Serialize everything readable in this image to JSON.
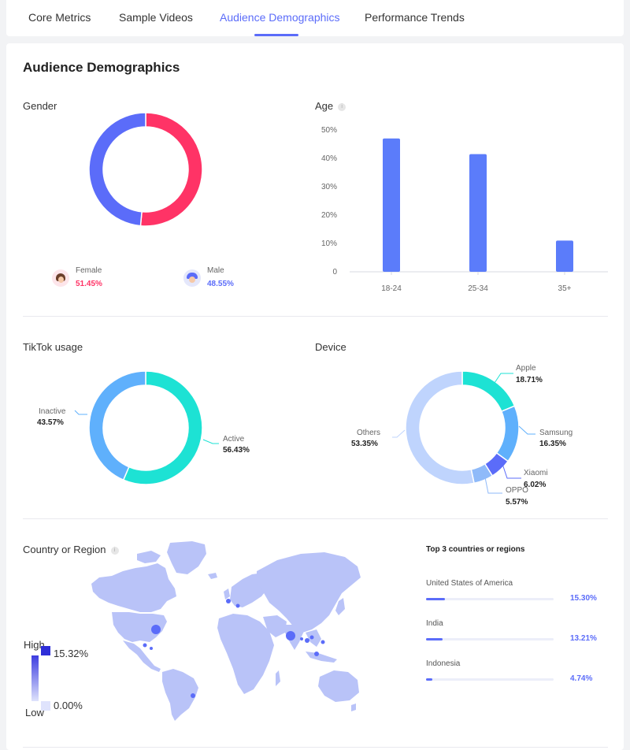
{
  "tabs": [
    "Core Metrics",
    "Sample Videos",
    "Audience Demographics",
    "Performance Trends"
  ],
  "active_tab": "Audience Demographics",
  "title": "Audience Demographics",
  "gender": {
    "label": "Gender",
    "female": {
      "label": "Female",
      "value": "51.45%",
      "color": "#ff3366"
    },
    "male": {
      "label": "Male",
      "value": "48.55%",
      "color": "#5b6cf9"
    }
  },
  "age": {
    "label": "Age",
    "info_icon": "info-icon"
  },
  "tiktok_usage": {
    "label": "TikTok usage",
    "inactive": {
      "label": "Inactive",
      "value": "43.57%"
    },
    "active": {
      "label": "Active",
      "value": "56.43%"
    }
  },
  "device": {
    "label": "Device",
    "apple": {
      "label": "Apple",
      "value": "18.71%"
    },
    "samsung": {
      "label": "Samsung",
      "value": "16.35%"
    },
    "xiaomi": {
      "label": "Xiaomi",
      "value": "6.02%"
    },
    "oppo": {
      "label": "OPPO",
      "value": "5.57%"
    },
    "others": {
      "label": "Others",
      "value": "53.35%"
    }
  },
  "region": {
    "label": "Country or Region",
    "info_icon": "info-icon",
    "scale_high": "High",
    "scale_low": "Low",
    "scale_max": "15.32%",
    "scale_min": "0.00%",
    "top3_title": "Top 3 countries or regions",
    "top3": [
      {
        "name": "United States of America",
        "value": "15.30%",
        "fraction": 0.153
      },
      {
        "name": "India",
        "value": "13.21%",
        "fraction": 0.1321
      },
      {
        "name": "Indonesia",
        "value": "4.74%",
        "fraction": 0.0474
      }
    ]
  },
  "chart_data": [
    {
      "type": "pie",
      "title": "",
      "categories": [
        "Female",
        "Male"
      ],
      "values": [
        51.45,
        48.55
      ],
      "colors": [
        "#ff3366",
        "#5b6cf9"
      ]
    },
    {
      "type": "bar",
      "title": "",
      "categories": [
        "18-24",
        "25-34",
        "35+"
      ],
      "values": [
        47,
        41.5,
        11
      ],
      "ylim": [
        0,
        50
      ],
      "yticks": [
        "0",
        "10%",
        "20%",
        "30%",
        "40%",
        "50%"
      ],
      "color": "#5b7cfa",
      "grid": false
    },
    {
      "type": "pie",
      "title": "",
      "categories": [
        "Active",
        "Inactive"
      ],
      "values": [
        56.43,
        43.57
      ],
      "colors": [
        "#1de2d4",
        "#5fb0fc"
      ]
    },
    {
      "type": "pie",
      "title": "",
      "categories": [
        "Apple",
        "Samsung",
        "Xiaomi",
        "OPPO",
        "Others"
      ],
      "values": [
        18.71,
        16.35,
        6.02,
        5.57,
        53.35
      ],
      "colors": [
        "#1de2d4",
        "#5fb0fc",
        "#5b6cf9",
        "#8fbaf9",
        "#bfd4fd"
      ]
    }
  ]
}
